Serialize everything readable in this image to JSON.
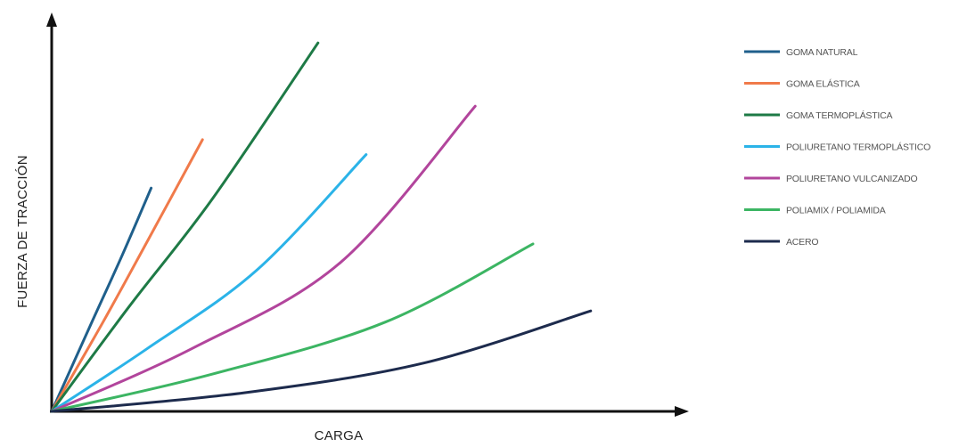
{
  "chart_data": {
    "type": "line",
    "title": "",
    "xlabel": "CARGA",
    "ylabel": "FUERZA DE TRACCIÓN",
    "xlim": [
      0,
      100
    ],
    "ylim": [
      0,
      100
    ],
    "grid": false,
    "legend_position": "right",
    "series": [
      {
        "name": "GOMA NATURAL",
        "color": "#1f5f8b",
        "points": [
          [
            0,
            0
          ],
          [
            6,
            23
          ],
          [
            11,
            42
          ],
          [
            15.5,
            60
          ]
        ]
      },
      {
        "name": "GOMA ELÁSTICA",
        "color": "#f07a4a",
        "points": [
          [
            0,
            0
          ],
          [
            8,
            24
          ],
          [
            15,
            46
          ],
          [
            23.5,
            73
          ]
        ]
      },
      {
        "name": "GOMA TERMOPLÁSTICA",
        "color": "#1e7a46",
        "points": [
          [
            0,
            0
          ],
          [
            12,
            28
          ],
          [
            25,
            57
          ],
          [
            41.5,
            99
          ]
        ]
      },
      {
        "name": "POLIURETANO TERMOPLÁSTICO",
        "color": "#2bb3e8",
        "points": [
          [
            0,
            0
          ],
          [
            15,
            17
          ],
          [
            32,
            38
          ],
          [
            49,
            69
          ]
        ]
      },
      {
        "name": "POLIURETANO VULCANIZADO",
        "color": "#b2459c",
        "points": [
          [
            0,
            0
          ],
          [
            22,
            17
          ],
          [
            45,
            40
          ],
          [
            66,
            82
          ]
        ]
      },
      {
        "name": "POLIAMIX / POLIAMIDA",
        "color": "#3cb563",
        "points": [
          [
            0,
            0
          ],
          [
            25,
            10
          ],
          [
            52,
            24
          ],
          [
            75,
            45
          ]
        ]
      },
      {
        "name": "ACERO",
        "color": "#1d2b4d",
        "points": [
          [
            0,
            0
          ],
          [
            30,
            5
          ],
          [
            58,
            13
          ],
          [
            84,
            27
          ]
        ]
      }
    ]
  }
}
